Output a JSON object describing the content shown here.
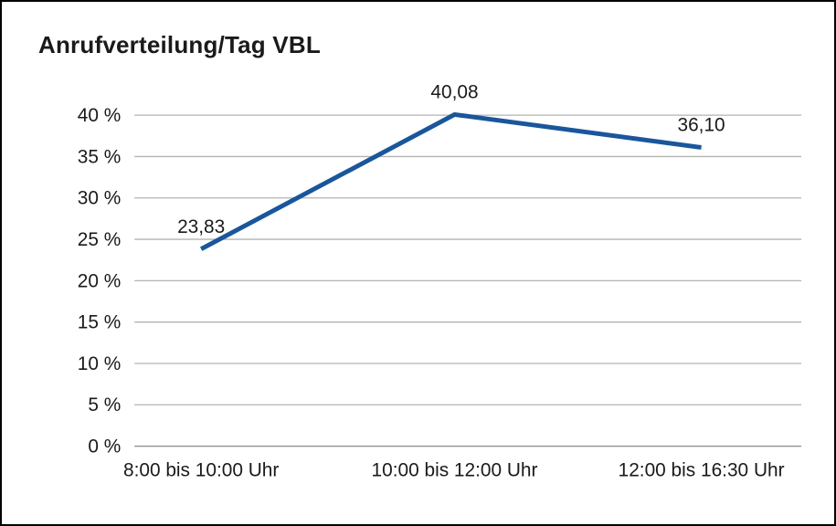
{
  "chart_data": {
    "type": "line",
    "title": "Anrufverteilung/Tag VBL",
    "categories": [
      "8:00 bis 10:00 Uhr",
      "10:00 bis 12:00 Uhr",
      "12:00 bis 16:30 Uhr"
    ],
    "values": [
      23.83,
      40.08,
      36.1
    ],
    "value_labels": [
      "23,83",
      "40,08",
      "36,10"
    ],
    "ylim": [
      0,
      40
    ],
    "ytick_step": 5,
    "ytick_suffix": " %",
    "grid": true,
    "legend": "none",
    "colors": {
      "line": "#1a569b",
      "grid": "#b3b3b3",
      "baseline": "#8a8a8a",
      "text": "#1a1a1a",
      "frame_border": "#000000",
      "background": "#ffffff"
    }
  }
}
